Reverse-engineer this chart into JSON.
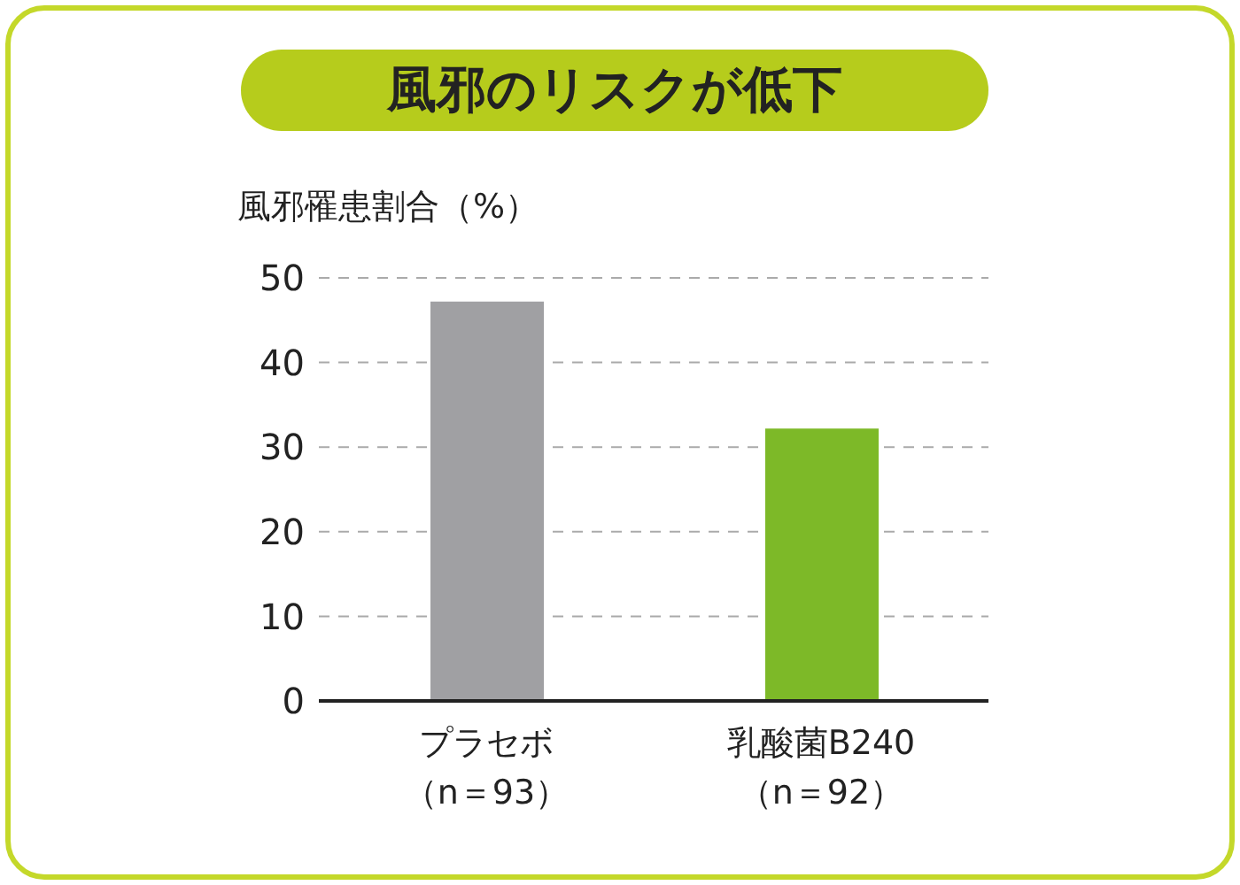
{
  "chart_data": {
    "type": "bar",
    "title": "風邪のリスクが低下",
    "ylabel": "風邪罹患割合（%）",
    "categories": [
      "プラセボ（n＝93）",
      "乳酸菌B240（n＝92）"
    ],
    "values": [
      47.2,
      32.2
    ],
    "colors": [
      "#a0a0a3",
      "#7db928"
    ],
    "ylim": [
      0,
      50
    ],
    "yticks": [
      0,
      10,
      20,
      30,
      40,
      50
    ],
    "grid": "y"
  }
}
